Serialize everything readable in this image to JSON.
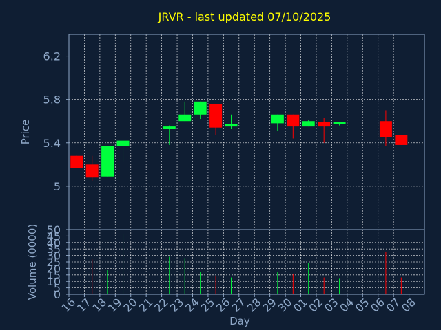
{
  "chart_data": {
    "type": "candlestick",
    "title": "JRVR - last updated 07/10/2025",
    "xlabel": "Day",
    "ylabel": "Price",
    "volume_label": "Volume (0000)",
    "grid": true,
    "colors": {
      "background": "#0f1e33",
      "up": "#00ff3c",
      "down": "#ff0000",
      "title": "#ffff00",
      "axis_text": "#8fa8c8",
      "grid": "#ffffff",
      "frame": "#8fa8c8"
    },
    "price_ylim": [
      4.6,
      6.4
    ],
    "price_ticks": [
      "6.2",
      "5.8",
      "5.4",
      "5"
    ],
    "price_tick_values": [
      6.2,
      5.8,
      5.4,
      5.0
    ],
    "volume_ylim": [
      0,
      50
    ],
    "volume_ticks": [
      "50",
      "45",
      "40",
      "35",
      "30",
      "25",
      "20",
      "15",
      "10",
      "5",
      "0"
    ],
    "volume_tick_values": [
      50,
      45,
      40,
      35,
      30,
      25,
      20,
      15,
      10,
      5,
      0
    ],
    "x_labels": [
      "16",
      "17",
      "18",
      "19",
      "20",
      "21",
      "22",
      "23",
      "24",
      "25",
      "26",
      "27",
      "28",
      "29",
      "30",
      "01",
      "02",
      "03",
      "04",
      "05",
      "06",
      "07",
      "08"
    ],
    "candles": [
      {
        "day": "16",
        "open": 5.28,
        "close": 5.17,
        "high": 5.28,
        "low": 5.17,
        "volume": 0
      },
      {
        "day": "17",
        "open": 5.2,
        "close": 5.08,
        "high": 5.28,
        "low": 5.05,
        "volume": 27
      },
      {
        "day": "18",
        "open": 5.09,
        "close": 5.37,
        "high": 5.37,
        "low": 5.09,
        "volume": 19
      },
      {
        "day": "19",
        "open": 5.37,
        "close": 5.42,
        "high": 5.42,
        "low": 5.23,
        "volume": 47
      },
      {
        "day": "22",
        "open": 5.53,
        "close": 5.55,
        "high": 5.56,
        "low": 5.38,
        "volume": 29
      },
      {
        "day": "23",
        "open": 5.6,
        "close": 5.66,
        "high": 5.78,
        "low": 5.6,
        "volume": 28
      },
      {
        "day": "24",
        "open": 5.66,
        "close": 5.78,
        "high": 5.78,
        "low": 5.62,
        "volume": 17
      },
      {
        "day": "25",
        "open": 5.76,
        "close": 5.54,
        "high": 5.76,
        "low": 5.47,
        "volume": 14
      },
      {
        "day": "26",
        "open": 5.55,
        "close": 5.57,
        "high": 5.66,
        "low": 5.53,
        "volume": 13
      },
      {
        "day": "29",
        "open": 5.58,
        "close": 5.66,
        "high": 5.66,
        "low": 5.51,
        "volume": 17
      },
      {
        "day": "30",
        "open": 5.66,
        "close": 5.55,
        "high": 5.66,
        "low": 5.44,
        "volume": 16
      },
      {
        "day": "01",
        "open": 5.55,
        "close": 5.6,
        "high": 5.61,
        "low": 5.55,
        "volume": 24
      },
      {
        "day": "02",
        "open": 5.59,
        "close": 5.55,
        "high": 5.63,
        "low": 5.4,
        "volume": 13
      },
      {
        "day": "03",
        "open": 5.57,
        "close": 5.59,
        "high": 5.59,
        "low": 5.56,
        "volume": 12
      },
      {
        "day": "06",
        "open": 5.6,
        "close": 5.45,
        "high": 5.7,
        "low": 5.37,
        "volume": 33
      },
      {
        "day": "07",
        "open": 5.47,
        "close": 5.38,
        "high": 5.47,
        "low": 5.38,
        "volume": 13
      }
    ]
  }
}
